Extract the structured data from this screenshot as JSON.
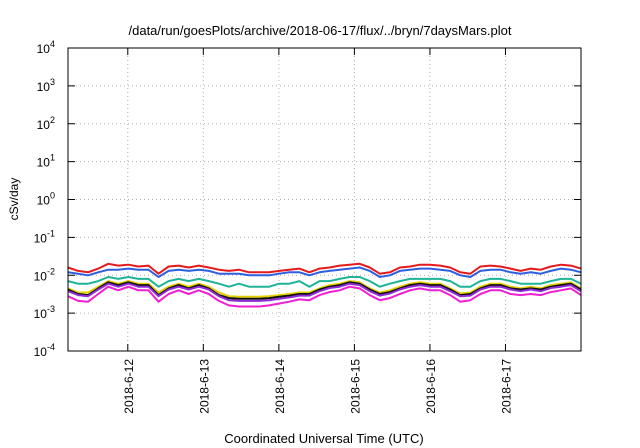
{
  "chart_data": {
    "type": "line",
    "title": "/data/run/goesPlots/archive/2018-06-17/flux/../bryn/7daysMars.plot",
    "xlabel": "Coordinated Universal Time (UTC)",
    "ylabel": "cSv/day",
    "y_scale": "log",
    "ylim": [
      0.0001,
      10000
    ],
    "xlim": [
      "2018-06-11 05:00",
      "2018-06-18 00:00"
    ],
    "grid": true,
    "legend": "none",
    "yticks": [
      {
        "base": "10",
        "exp": "4"
      },
      {
        "base": "10",
        "exp": "3"
      },
      {
        "base": "10",
        "exp": "2"
      },
      {
        "base": "10",
        "exp": "1"
      },
      {
        "base": "10",
        "exp": "0"
      },
      {
        "base": "10",
        "exp": "-1"
      },
      {
        "base": "10",
        "exp": "-2"
      },
      {
        "base": "10",
        "exp": "-3"
      },
      {
        "base": "10",
        "exp": "-4"
      }
    ],
    "xticks": [
      "2018-6-12",
      "2018-6-13",
      "2018-6-14",
      "2018-6-15",
      "2018-6-16",
      "2018-6-17"
    ],
    "series": [
      {
        "color": "#e41a1c",
        "values": [
          0.016,
          0.013,
          0.012,
          0.015,
          0.02,
          0.018,
          0.019,
          0.017,
          0.018,
          0.011,
          0.017,
          0.018,
          0.016,
          0.018,
          0.016,
          0.014,
          0.013,
          0.014,
          0.012,
          0.012,
          0.012,
          0.013,
          0.014,
          0.015,
          0.012,
          0.015,
          0.016,
          0.018,
          0.019,
          0.02,
          0.016,
          0.011,
          0.012,
          0.016,
          0.017,
          0.019,
          0.019,
          0.018,
          0.016,
          0.012,
          0.011,
          0.017,
          0.018,
          0.017,
          0.015,
          0.013,
          0.015,
          0.014,
          0.017,
          0.019,
          0.018,
          0.015
        ]
      },
      {
        "color": "#2f5fe0",
        "values": [
          0.012,
          0.011,
          0.01,
          0.012,
          0.014,
          0.014,
          0.015,
          0.014,
          0.014,
          0.009,
          0.013,
          0.014,
          0.013,
          0.014,
          0.013,
          0.011,
          0.011,
          0.011,
          0.01,
          0.01,
          0.01,
          0.011,
          0.012,
          0.012,
          0.01,
          0.012,
          0.013,
          0.014,
          0.015,
          0.016,
          0.013,
          0.009,
          0.01,
          0.013,
          0.014,
          0.015,
          0.015,
          0.014,
          0.013,
          0.01,
          0.009,
          0.013,
          0.014,
          0.014,
          0.012,
          0.011,
          0.012,
          0.011,
          0.013,
          0.015,
          0.014,
          0.012
        ]
      },
      {
        "color": "#1fb398",
        "values": [
          0.007,
          0.006,
          0.006,
          0.007,
          0.009,
          0.008,
          0.009,
          0.008,
          0.008,
          0.005,
          0.007,
          0.008,
          0.007,
          0.008,
          0.007,
          0.006,
          0.005,
          0.006,
          0.005,
          0.005,
          0.005,
          0.006,
          0.006,
          0.007,
          0.005,
          0.007,
          0.007,
          0.008,
          0.009,
          0.009,
          0.007,
          0.005,
          0.006,
          0.007,
          0.008,
          0.008,
          0.008,
          0.008,
          0.007,
          0.005,
          0.005,
          0.007,
          0.008,
          0.008,
          0.007,
          0.006,
          0.006,
          0.006,
          0.007,
          0.008,
          0.008,
          0.006
        ]
      },
      {
        "color": "#e2d000",
        "values": [
          0.0045,
          0.0035,
          0.0035,
          0.005,
          0.007,
          0.006,
          0.007,
          0.006,
          0.006,
          0.0035,
          0.005,
          0.006,
          0.005,
          0.006,
          0.005,
          0.0035,
          0.0028,
          0.0027,
          0.0027,
          0.0027,
          0.0028,
          0.003,
          0.0032,
          0.0035,
          0.0035,
          0.0045,
          0.0055,
          0.006,
          0.007,
          0.0065,
          0.0045,
          0.0035,
          0.004,
          0.005,
          0.006,
          0.0065,
          0.006,
          0.006,
          0.0045,
          0.0033,
          0.0035,
          0.005,
          0.006,
          0.006,
          0.005,
          0.0045,
          0.005,
          0.0045,
          0.0055,
          0.006,
          0.0065,
          0.0045
        ]
      },
      {
        "color": "#111111",
        "values": [
          0.0042,
          0.0032,
          0.003,
          0.0045,
          0.0065,
          0.0055,
          0.0065,
          0.0055,
          0.0055,
          0.003,
          0.0045,
          0.0055,
          0.0045,
          0.0055,
          0.0045,
          0.003,
          0.0025,
          0.0024,
          0.0024,
          0.0024,
          0.0025,
          0.0027,
          0.0029,
          0.0032,
          0.0032,
          0.0042,
          0.005,
          0.0055,
          0.0065,
          0.006,
          0.0042,
          0.0032,
          0.0036,
          0.0045,
          0.0055,
          0.006,
          0.0055,
          0.0055,
          0.0042,
          0.003,
          0.0032,
          0.0045,
          0.0055,
          0.0055,
          0.0045,
          0.0042,
          0.0045,
          0.0042,
          0.005,
          0.0055,
          0.006,
          0.0042
        ]
      },
      {
        "color": "#8e2bd6",
        "values": [
          0.0038,
          0.003,
          0.0028,
          0.0042,
          0.006,
          0.005,
          0.006,
          0.005,
          0.005,
          0.0028,
          0.0042,
          0.005,
          0.0042,
          0.005,
          0.0042,
          0.0028,
          0.0022,
          0.0021,
          0.0021,
          0.0021,
          0.0022,
          0.0024,
          0.0026,
          0.0029,
          0.0029,
          0.0038,
          0.0046,
          0.005,
          0.006,
          0.0055,
          0.0038,
          0.0029,
          0.0033,
          0.0042,
          0.005,
          0.0055,
          0.005,
          0.005,
          0.0038,
          0.0028,
          0.0029,
          0.0042,
          0.005,
          0.005,
          0.0042,
          0.0038,
          0.0042,
          0.0038,
          0.0046,
          0.005,
          0.0055,
          0.0038
        ]
      },
      {
        "color": "#f01fd0",
        "values": [
          0.0028,
          0.0021,
          0.002,
          0.0032,
          0.005,
          0.004,
          0.005,
          0.004,
          0.004,
          0.002,
          0.0032,
          0.004,
          0.0032,
          0.004,
          0.0032,
          0.0021,
          0.0016,
          0.0015,
          0.0015,
          0.0015,
          0.0016,
          0.0018,
          0.002,
          0.0023,
          0.0022,
          0.003,
          0.0036,
          0.004,
          0.005,
          0.0045,
          0.003,
          0.0022,
          0.0025,
          0.0032,
          0.004,
          0.0045,
          0.004,
          0.004,
          0.003,
          0.002,
          0.0022,
          0.0032,
          0.004,
          0.004,
          0.0032,
          0.003,
          0.0032,
          0.003,
          0.0036,
          0.004,
          0.0045,
          0.003
        ]
      }
    ]
  }
}
